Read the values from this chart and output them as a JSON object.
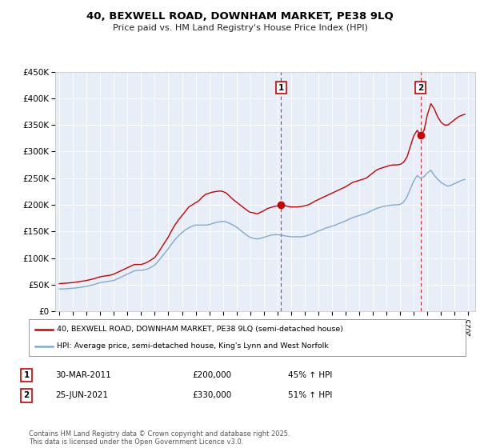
{
  "title": "40, BEXWELL ROAD, DOWNHAM MARKET, PE38 9LQ",
  "subtitle": "Price paid vs. HM Land Registry's House Price Index (HPI)",
  "ylim": [
    0,
    450000
  ],
  "xlim_start": 1994.7,
  "xlim_end": 2025.5,
  "yticks": [
    0,
    50000,
    100000,
    150000,
    200000,
    250000,
    300000,
    350000,
    400000,
    450000
  ],
  "ytick_labels": [
    "£0",
    "£50K",
    "£100K",
    "£150K",
    "£200K",
    "£250K",
    "£300K",
    "£350K",
    "£400K",
    "£450K"
  ],
  "xticks": [
    1995,
    1996,
    1997,
    1998,
    1999,
    2000,
    2001,
    2002,
    2003,
    2004,
    2005,
    2006,
    2007,
    2008,
    2009,
    2010,
    2011,
    2012,
    2013,
    2014,
    2015,
    2016,
    2017,
    2018,
    2019,
    2020,
    2021,
    2022,
    2023,
    2024,
    2025
  ],
  "background_color": "#ffffff",
  "plot_bg_color": "#e8eef8",
  "grid_color": "#ffffff",
  "red_line_color": "#cc0000",
  "blue_line_color": "#7faacc",
  "sale1_x": 2011.25,
  "sale1_y": 200000,
  "sale1_label": "1",
  "sale1_date": "30-MAR-2011",
  "sale1_price": "£200,000",
  "sale1_hpi": "45% ↑ HPI",
  "sale2_x": 2021.5,
  "sale2_y": 330000,
  "sale2_label": "2",
  "sale2_date": "25-JUN-2021",
  "sale2_price": "£330,000",
  "sale2_hpi": "51% ↑ HPI",
  "legend_line1": "40, BEXWELL ROAD, DOWNHAM MARKET, PE38 9LQ (semi-detached house)",
  "legend_line2": "HPI: Average price, semi-detached house, King's Lynn and West Norfolk",
  "footer": "Contains HM Land Registry data © Crown copyright and database right 2025.\nThis data is licensed under the Open Government Licence v3.0.",
  "red_hpi_data": {
    "years": [
      1995.0,
      1995.25,
      1995.5,
      1995.75,
      1996.0,
      1996.25,
      1996.5,
      1996.75,
      1997.0,
      1997.25,
      1997.5,
      1997.75,
      1998.0,
      1998.25,
      1998.5,
      1998.75,
      1999.0,
      1999.25,
      1999.5,
      1999.75,
      2000.0,
      2000.25,
      2000.5,
      2000.75,
      2001.0,
      2001.25,
      2001.5,
      2001.75,
      2002.0,
      2002.25,
      2002.5,
      2002.75,
      2003.0,
      2003.25,
      2003.5,
      2003.75,
      2004.0,
      2004.25,
      2004.5,
      2004.75,
      2005.0,
      2005.25,
      2005.5,
      2005.75,
      2006.0,
      2006.25,
      2006.5,
      2006.75,
      2007.0,
      2007.25,
      2007.5,
      2007.75,
      2008.0,
      2008.25,
      2008.5,
      2008.75,
      2009.0,
      2009.25,
      2009.5,
      2009.75,
      2010.0,
      2010.25,
      2010.5,
      2010.75,
      2011.0,
      2011.25,
      2011.5,
      2011.75,
      2012.0,
      2012.25,
      2012.5,
      2012.75,
      2013.0,
      2013.25,
      2013.5,
      2013.75,
      2014.0,
      2014.25,
      2014.5,
      2014.75,
      2015.0,
      2015.25,
      2015.5,
      2015.75,
      2016.0,
      2016.25,
      2016.5,
      2016.75,
      2017.0,
      2017.25,
      2017.5,
      2017.75,
      2018.0,
      2018.25,
      2018.5,
      2018.75,
      2019.0,
      2019.25,
      2019.5,
      2019.75,
      2020.0,
      2020.25,
      2020.5,
      2020.75,
      2021.0,
      2021.25,
      2021.5,
      2021.75,
      2022.0,
      2022.25,
      2022.5,
      2022.75,
      2023.0,
      2023.25,
      2023.5,
      2023.75,
      2024.0,
      2024.25,
      2024.5,
      2024.75
    ],
    "values": [
      52000,
      52500,
      53000,
      53500,
      54000,
      55000,
      56000,
      57000,
      58000,
      59500,
      61000,
      63000,
      65000,
      66000,
      67000,
      68000,
      70000,
      73000,
      76000,
      79000,
      82000,
      85000,
      88000,
      88000,
      88000,
      90000,
      93000,
      97000,
      101000,
      110000,
      120000,
      130000,
      140000,
      152000,
      163000,
      172000,
      180000,
      188000,
      196000,
      200000,
      204000,
      208000,
      215000,
      220000,
      222000,
      224000,
      225000,
      226000,
      225000,
      222000,
      216000,
      210000,
      205000,
      200000,
      195000,
      190000,
      186000,
      185000,
      183000,
      186000,
      189000,
      193000,
      195000,
      197000,
      198000,
      200000,
      199000,
      197000,
      196000,
      196000,
      196000,
      197000,
      198000,
      200000,
      203000,
      207000,
      210000,
      213000,
      216000,
      219000,
      222000,
      225000,
      228000,
      231000,
      234000,
      238000,
      242000,
      244000,
      246000,
      248000,
      250000,
      255000,
      260000,
      265000,
      268000,
      270000,
      272000,
      274000,
      275000,
      275000,
      276000,
      280000,
      290000,
      310000,
      330000,
      340000,
      330000,
      340000,
      370000,
      390000,
      380000,
      365000,
      355000,
      350000,
      350000,
      355000,
      360000,
      365000,
      368000,
      370000
    ]
  },
  "blue_hpi_data": {
    "years": [
      1995.0,
      1995.25,
      1995.5,
      1995.75,
      1996.0,
      1996.25,
      1996.5,
      1996.75,
      1997.0,
      1997.25,
      1997.5,
      1997.75,
      1998.0,
      1998.25,
      1998.5,
      1998.75,
      1999.0,
      1999.25,
      1999.5,
      1999.75,
      2000.0,
      2000.25,
      2000.5,
      2000.75,
      2001.0,
      2001.25,
      2001.5,
      2001.75,
      2002.0,
      2002.25,
      2002.5,
      2002.75,
      2003.0,
      2003.25,
      2003.5,
      2003.75,
      2004.0,
      2004.25,
      2004.5,
      2004.75,
      2005.0,
      2005.25,
      2005.5,
      2005.75,
      2006.0,
      2006.25,
      2006.5,
      2006.75,
      2007.0,
      2007.25,
      2007.5,
      2007.75,
      2008.0,
      2008.25,
      2008.5,
      2008.75,
      2009.0,
      2009.25,
      2009.5,
      2009.75,
      2010.0,
      2010.25,
      2010.5,
      2010.75,
      2011.0,
      2011.25,
      2011.5,
      2011.75,
      2012.0,
      2012.25,
      2012.5,
      2012.75,
      2013.0,
      2013.25,
      2013.5,
      2013.75,
      2014.0,
      2014.25,
      2014.5,
      2014.75,
      2015.0,
      2015.25,
      2015.5,
      2015.75,
      2016.0,
      2016.25,
      2016.5,
      2016.75,
      2017.0,
      2017.25,
      2017.5,
      2017.75,
      2018.0,
      2018.25,
      2018.5,
      2018.75,
      2019.0,
      2019.25,
      2019.5,
      2019.75,
      2020.0,
      2020.25,
      2020.5,
      2020.75,
      2021.0,
      2021.25,
      2021.5,
      2021.75,
      2022.0,
      2022.25,
      2022.5,
      2022.75,
      2023.0,
      2023.25,
      2023.5,
      2023.75,
      2024.0,
      2024.25,
      2024.5,
      2024.75
    ],
    "values": [
      42000,
      42000,
      42500,
      43000,
      43500,
      44000,
      45000,
      46000,
      47000,
      48500,
      50000,
      52000,
      54000,
      55000,
      56000,
      57000,
      58000,
      61000,
      64000,
      67000,
      70000,
      73000,
      76000,
      77000,
      77000,
      78000,
      80000,
      83000,
      87000,
      94000,
      102000,
      110000,
      118000,
      127000,
      135000,
      142000,
      148000,
      153000,
      157000,
      160000,
      162000,
      162000,
      162000,
      162000,
      163000,
      165000,
      167000,
      168000,
      169000,
      168000,
      165000,
      162000,
      158000,
      153000,
      148000,
      143000,
      139000,
      137000,
      136000,
      137000,
      139000,
      141000,
      143000,
      144000,
      144000,
      143000,
      142000,
      141000,
      140000,
      140000,
      140000,
      140000,
      141000,
      143000,
      145000,
      148000,
      151000,
      153000,
      156000,
      158000,
      160000,
      162000,
      165000,
      167000,
      170000,
      173000,
      176000,
      178000,
      180000,
      182000,
      184000,
      187000,
      190000,
      193000,
      195000,
      197000,
      198000,
      199000,
      200000,
      200000,
      201000,
      205000,
      215000,
      230000,
      245000,
      255000,
      250000,
      253000,
      260000,
      265000,
      255000,
      248000,
      242000,
      238000,
      235000,
      237000,
      240000,
      243000,
      246000,
      248000
    ]
  }
}
